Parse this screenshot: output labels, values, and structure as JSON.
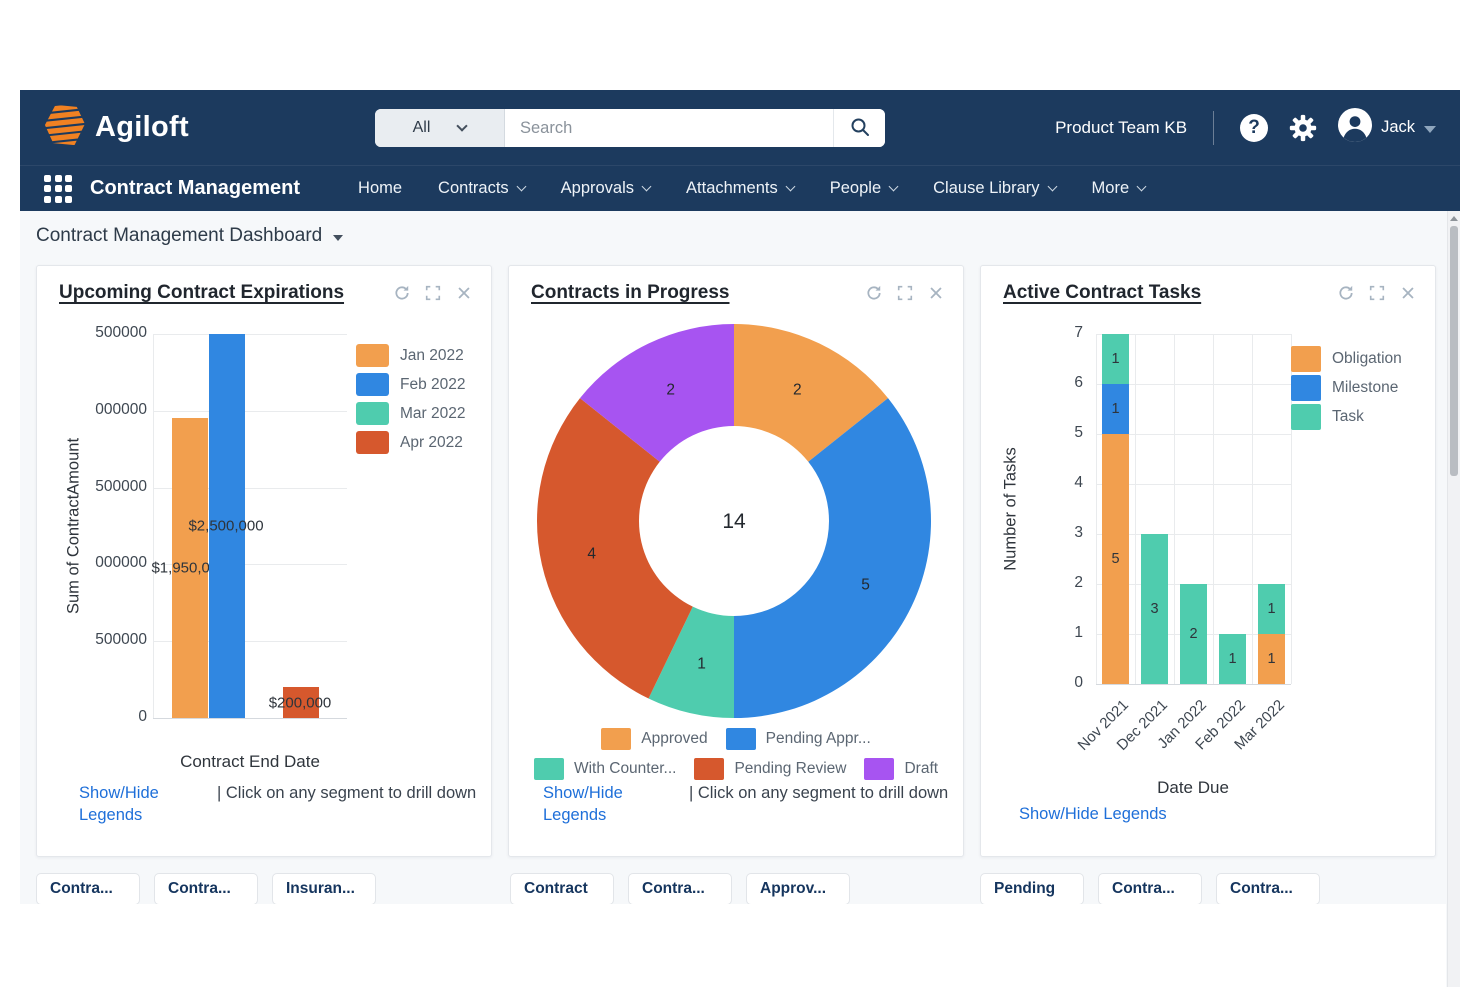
{
  "header": {
    "brand": "Agiloft",
    "search": {
      "scope": "All",
      "placeholder": "Search"
    },
    "kb_name": "Product Team KB",
    "user_name": "Jack"
  },
  "nav": {
    "app_title": "Contract Management",
    "items": [
      {
        "label": "Home",
        "dropdown": false
      },
      {
        "label": "Contracts",
        "dropdown": true
      },
      {
        "label": "Approvals",
        "dropdown": true
      },
      {
        "label": "Attachments",
        "dropdown": true
      },
      {
        "label": "People",
        "dropdown": true
      },
      {
        "label": "Clause Library",
        "dropdown": true
      },
      {
        "label": "More",
        "dropdown": true
      }
    ]
  },
  "page": {
    "title": "Contract Management Dashboard"
  },
  "footer_links": {
    "legends": "Show/Hide Legends",
    "drill_hint": "| Click on any segment to drill down"
  },
  "chart_data": [
    {
      "type": "bar",
      "title": "Upcoming Contract Expirations",
      "categories": [
        "Jan 2022",
        "Feb 2022",
        "Mar 2022",
        "Apr 2022"
      ],
      "values": [
        1950000,
        2500000,
        0,
        200000
      ],
      "bar_labels": [
        "$1,950,000",
        "$2,500,000",
        "",
        "$200,000"
      ],
      "series_colors": [
        "#f29f4e",
        "#3087e1",
        "#4fccae",
        "#d6582d"
      ],
      "legend": [
        "Jan 2022",
        "Feb 2022",
        "Mar 2022",
        "Apr 2022"
      ],
      "legend_position": "right",
      "xlabel": "Contract End Date",
      "ylabel": "Sum of ContractAmount",
      "ylim": [
        0,
        2500000
      ],
      "yticks": [
        0,
        500000,
        1000000,
        1500000,
        2000000,
        2500000
      ],
      "ytick_labels_shown": [
        "0",
        "500000",
        "000000",
        "500000",
        "000000",
        "500000"
      ],
      "grid": true
    },
    {
      "type": "donut",
      "title": "Contracts in Progress",
      "center_total": 14,
      "segments": [
        {
          "label": "Approved",
          "value": 2,
          "color": "#f29f4e"
        },
        {
          "label": "Pending Appr...",
          "value": 5,
          "color": "#3087e1"
        },
        {
          "label": "With Counter...",
          "value": 1,
          "color": "#4fccae"
        },
        {
          "label": "Pending Review",
          "value": 4,
          "color": "#d6582d"
        },
        {
          "label": "Draft",
          "value": 2,
          "color": "#a754f1"
        }
      ],
      "legend_rows": [
        [
          "Approved",
          "Pending Appr..."
        ],
        [
          "With Counter...",
          "Pending Review",
          "Draft"
        ]
      ]
    },
    {
      "type": "stacked-bar",
      "title": "Active Contract Tasks",
      "categories": [
        "Nov 2021",
        "Dec 2021",
        "Jan 2022",
        "Feb 2022",
        "Mar 2022"
      ],
      "series": [
        {
          "name": "Obligation",
          "color": "#f29f4e",
          "values": [
            5,
            0,
            0,
            0,
            1
          ]
        },
        {
          "name": "Milestone",
          "color": "#3087e1",
          "values": [
            1,
            0,
            0,
            0,
            0
          ]
        },
        {
          "name": "Task",
          "color": "#4fccae",
          "values": [
            1,
            3,
            2,
            1,
            1
          ]
        }
      ],
      "legend_position": "right",
      "xlabel": "Date Due",
      "ylabel": "Number of Tasks",
      "ylim": [
        0,
        7
      ],
      "yticks": [
        0,
        1,
        2,
        3,
        4,
        5,
        6,
        7
      ],
      "grid": true
    }
  ],
  "bottom_tabs": [
    [
      "Contra...",
      "Contra...",
      "Insuran..."
    ],
    [
      "Contract",
      "Contra...",
      "Approv..."
    ],
    [
      "Pending",
      "Contra...",
      "Contra..."
    ]
  ],
  "colors": {
    "navy": "#1c3a5e",
    "link_blue": "#1e6fd9",
    "orange": "#f29f4e",
    "blue": "#3087e1",
    "teal": "#4fccae",
    "red": "#d6582d",
    "purple": "#a754f1",
    "logo_orange": "#f08122"
  },
  "icons": {
    "help_icon": "?",
    "gear_icon": "gear",
    "search_icon": "magnifier",
    "apps_grid_icon": "3x3-dots",
    "user_avatar_icon": "person-circle",
    "refresh_icon": "circular-arrow",
    "expand_icon": "fullscreen-corners",
    "close_icon": "x",
    "chevron_down_icon": "chevron-down",
    "caret_down_icon": "caret-down"
  }
}
